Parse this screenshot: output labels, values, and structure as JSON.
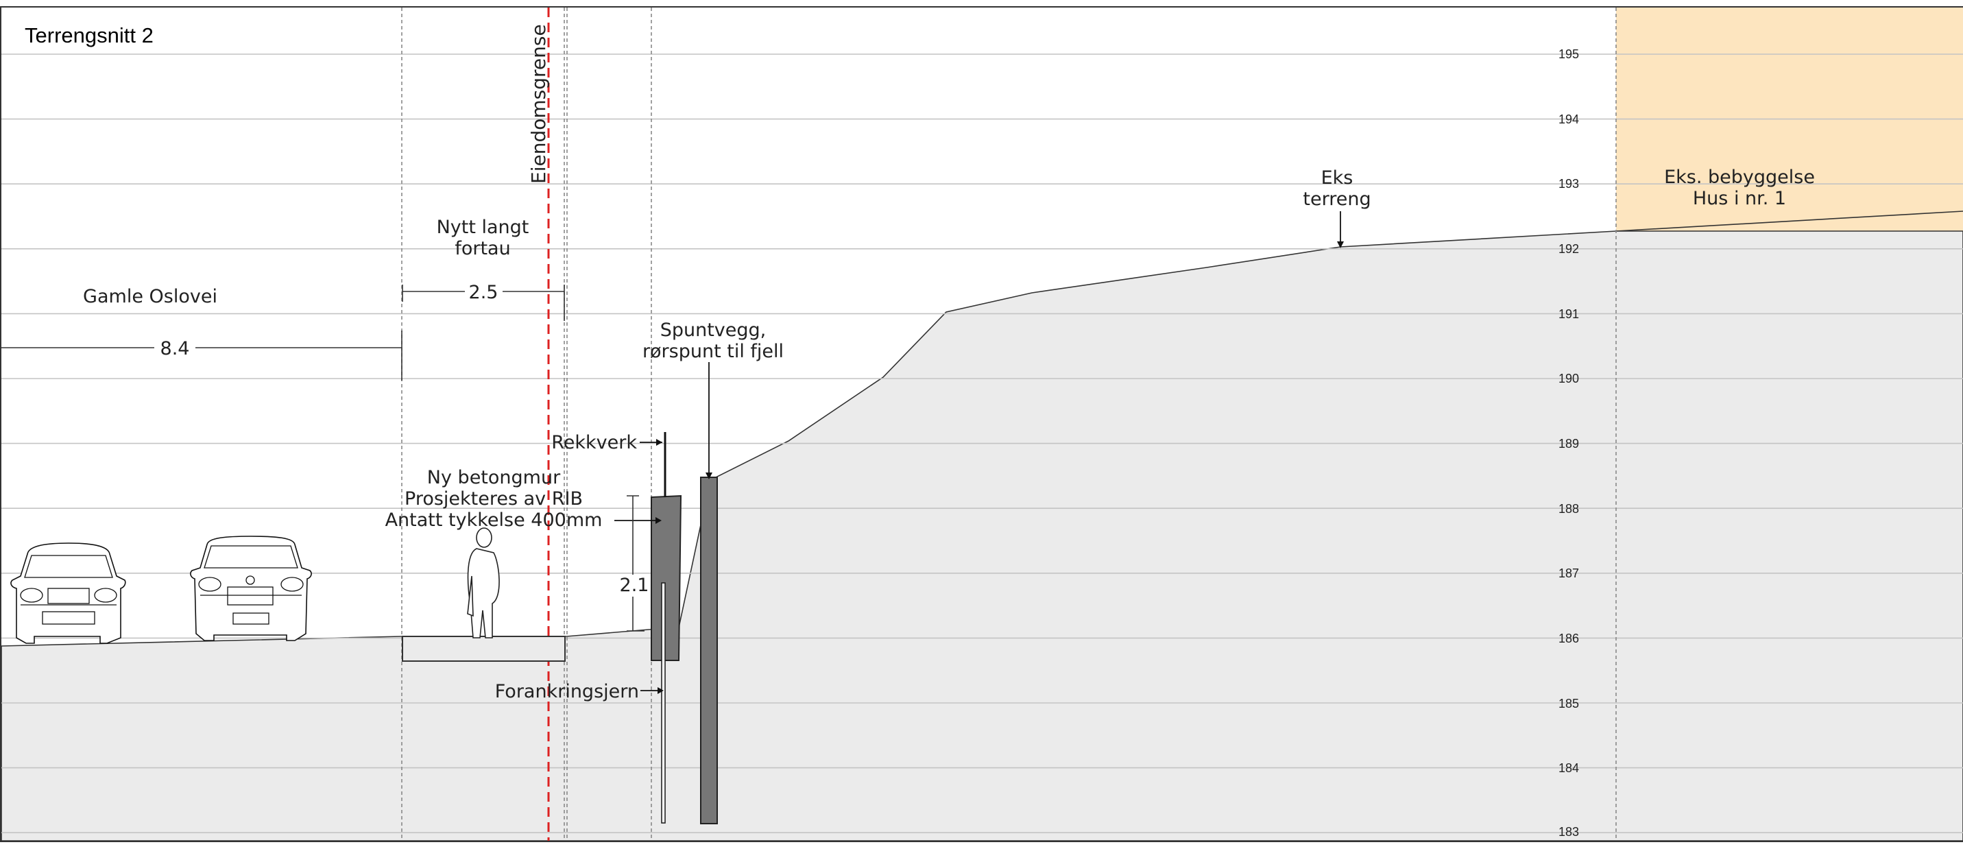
{
  "title": "Terrengsnitt 2",
  "elevations": [
    "195",
    "194",
    "193",
    "192",
    "191",
    "190",
    "189",
    "188",
    "187",
    "186",
    "185",
    "184",
    "183"
  ],
  "labels": {
    "road": "Gamle Oslovei",
    "road_width": "8.4",
    "sidewalk_line1": "Nytt langt",
    "sidewalk_line2": "fortau",
    "sidewalk_width": "2.5",
    "property_line": "Eiendomsgrense",
    "railing": "Rekkverk",
    "sheetpile_line1": "Spuntvegg,",
    "sheetpile_line2": "rørspunt til fjell",
    "wall_line1": "Ny betongmur",
    "wall_line2": "Prosjekteres av RIB",
    "wall_line3": "Antatt tykkelse 400mm",
    "wall_height": "2.1",
    "anchor": "Forankringsjern",
    "terrain_line1": "Eks",
    "terrain_line2": "terreng",
    "building_line1": "Eks. bebyggelse",
    "building_line2": "Hus i nr. 1"
  },
  "colors": {
    "ground": "#ebebeb",
    "building": "#fde5bf",
    "property_line": "#dd2222",
    "structure": "#777777"
  }
}
